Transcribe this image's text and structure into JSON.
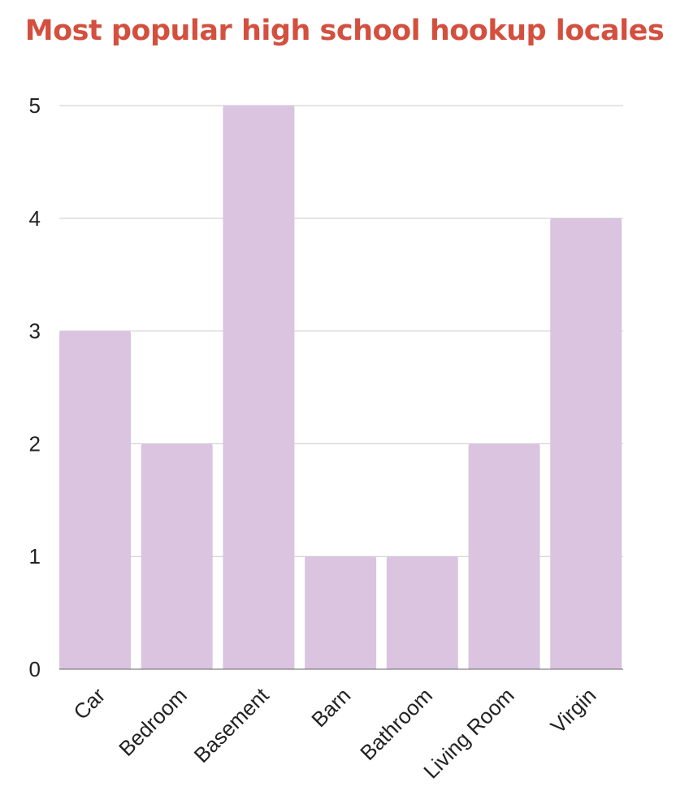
{
  "chart_data": {
    "type": "bar",
    "title": "Most popular high school hookup locales",
    "categories": [
      "Car",
      "Bedroom",
      "Basement",
      "Barn",
      "Bathroom",
      "Living Room",
      "Virgin"
    ],
    "values": [
      3,
      2,
      5,
      1,
      1,
      2,
      4
    ],
    "xlabel": "",
    "ylabel": "",
    "ylim": [
      0,
      5
    ],
    "yticks": [
      "0",
      "1",
      "2",
      "3",
      "4",
      "5"
    ],
    "grid": true,
    "legend": "none",
    "colors": {
      "title": "#d3503f",
      "bar": "#dac4e0",
      "grid": "#c8c8c8",
      "axis": "#666666"
    }
  }
}
